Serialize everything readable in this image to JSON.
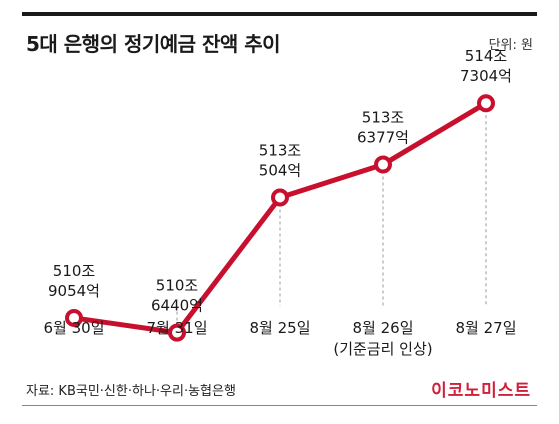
{
  "header": {
    "title": "5대 은행의 정기예금 잔액 추이",
    "unit": "단위: 원"
  },
  "footer": {
    "source": "자료: KB국민·신한·하나·우리·농협은행",
    "logo": "이코노미스트"
  },
  "colors": {
    "line": "#c8102e",
    "guide": "#9a9a9a",
    "text": "#1a1a1a"
  },
  "chart_data": {
    "type": "line",
    "categories": [
      "6월 30일",
      "7월 31일",
      "8월 25일",
      "8월 26일",
      "8월 27일"
    ],
    "category_notes": [
      "",
      "",
      "",
      "(기준금리 인상)",
      ""
    ],
    "values": [
      5109054,
      5106440,
      5130504,
      5136377,
      5147304
    ],
    "data_labels": [
      [
        "510조",
        "9054억"
      ],
      [
        "510조",
        "6440억"
      ],
      [
        "513조",
        "504억"
      ],
      [
        "513조",
        "6377억"
      ],
      [
        "514조",
        "7304억"
      ]
    ],
    "ylim": [
      5098000,
      5155000
    ],
    "grid": false
  }
}
